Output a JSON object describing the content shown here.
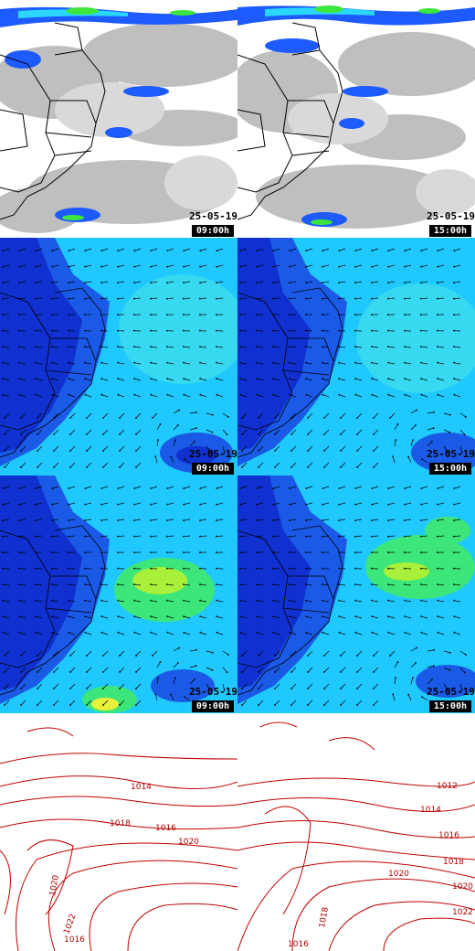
{
  "panels": [
    {
      "id": "sat-09",
      "kind": "satellite",
      "date": "25-05-19",
      "time": "09:00h"
    },
    {
      "id": "sat-15",
      "kind": "satellite",
      "date": "25-05-19",
      "time": "15:00h"
    },
    {
      "id": "wind-low-09",
      "kind": "wind",
      "date": "25-05-19",
      "time": "09:00h"
    },
    {
      "id": "wind-low-15",
      "kind": "wind",
      "date": "25-05-19",
      "time": "15:00h"
    },
    {
      "id": "wind-high-09",
      "kind": "wind-high",
      "date": "25-05-19",
      "time": "09:00h"
    },
    {
      "id": "wind-high-15",
      "kind": "wind-high",
      "date": "25-05-19",
      "time": "15:00h"
    },
    {
      "id": "pressure-09",
      "kind": "pressure",
      "isobar_labels": [
        "1014",
        "1016",
        "1018",
        "1020",
        "1020",
        "1022",
        "1016"
      ]
    },
    {
      "id": "pressure-15",
      "kind": "pressure",
      "isobar_labels": [
        "1012",
        "1014",
        "1016",
        "1018",
        "1020",
        "1020",
        "1022",
        "1018",
        "1016"
      ]
    }
  ],
  "colors": {
    "precip_light": "#1e5bff",
    "precip_mid": "#2bd6ff",
    "precip_high": "#3ce63c",
    "wind_bg": "#1fc8ff",
    "wind_dark": "#1030d0",
    "isobar": "#c00000"
  }
}
